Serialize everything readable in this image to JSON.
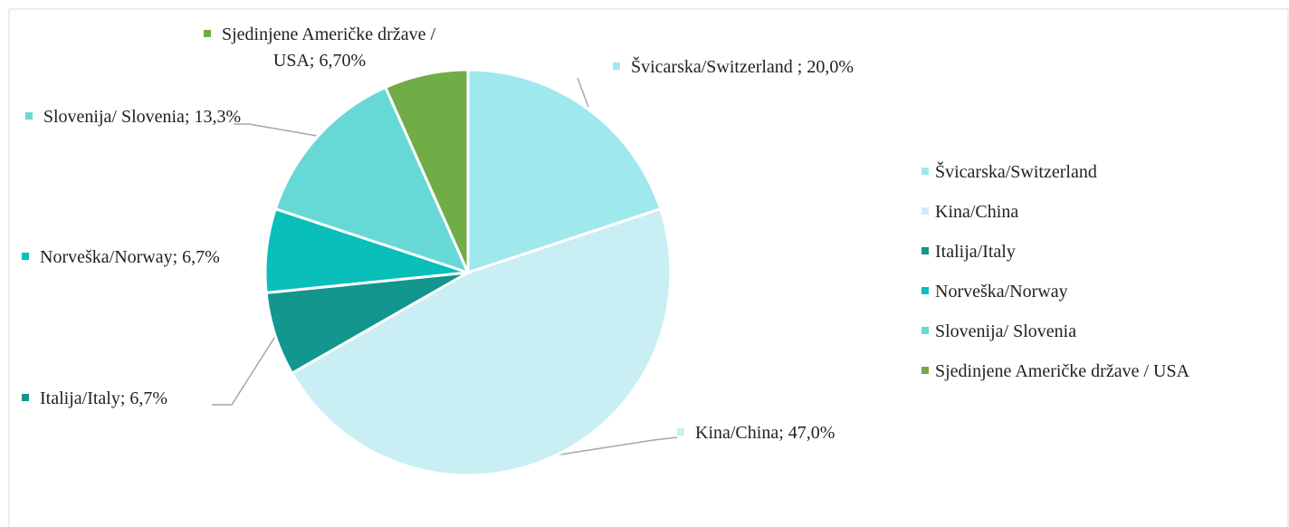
{
  "chart_data": {
    "type": "pie",
    "categories": [
      "Švicarska/Switzerland",
      "Kina/China",
      "Italija/Italy",
      "Norveška/Norway",
      "Slovenija/ Slovenia",
      "Sjedinjene Američke države / USA"
    ],
    "values": [
      20.0,
      47.0,
      6.7,
      6.7,
      13.3,
      6.7
    ],
    "value_labels": [
      "Švicarska/Switzerland ; 20,0%",
      "Kina/China; 47,0%",
      "Italija/Italy; 6,7%",
      "Norveška/Norway; 6,7%",
      "Slovenija/ Slovenia; 13,3%",
      "Sjedinjene Američke države / USA; 6,70%"
    ],
    "colors": [
      "#9fe8ee",
      "#c9eff5",
      "#12968e",
      "#08bfba",
      "#66d9d6",
      "#70ad47"
    ],
    "legend": "right"
  }
}
